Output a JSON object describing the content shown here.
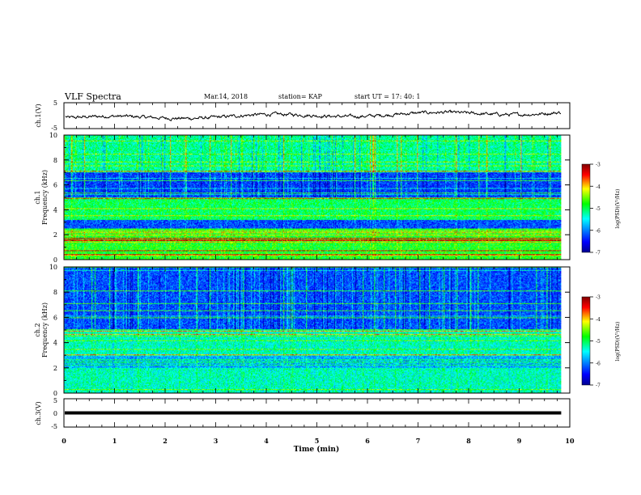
{
  "header": {
    "title": "VLF Spectra",
    "date": "Mar.14, 2018",
    "station": "station= KAP",
    "start": "start  UT =   17: 40: 1"
  },
  "chart_data": [
    {
      "type": "line",
      "name": "ch1-waveform",
      "ylabel": "ch.1(V)",
      "ylim": [
        -5,
        5
      ],
      "yticks": [
        "5",
        "-5"
      ],
      "xlim": [
        0,
        10
      ],
      "x_extent_min": 9.83,
      "description_of_signal": "noisy trace around -1 V to 3 V"
    },
    {
      "type": "heatmap",
      "name": "ch1-spectrogram",
      "ylabel_line1": "ch.1",
      "ylabel_line2": "Frequency (kHz)",
      "ylim": [
        0,
        10
      ],
      "yticks": [
        "0",
        "2",
        "4",
        "6",
        "8",
        "10"
      ],
      "xlim": [
        0,
        10
      ],
      "x_extent_min": 9.83,
      "colorbar": {
        "label": "log(PSD)(V²/Hz)",
        "ticks": [
          "-3",
          "-4",
          "-5",
          "-6",
          "-7"
        ],
        "range": [
          -7,
          -3
        ]
      },
      "colors": [
        "#00008f",
        "#0000ff",
        "#00ffff",
        "#00ff00",
        "#ffff00",
        "#ff0000",
        "#800000"
      ]
    },
    {
      "type": "heatmap",
      "name": "ch2-spectrogram",
      "ylabel_line1": "ch.2",
      "ylabel_line2": "Frequency (kHz)",
      "ylim": [
        0,
        10
      ],
      "yticks": [
        "0",
        "2",
        "4",
        "6",
        "8",
        "10"
      ],
      "xlim": [
        0,
        10
      ],
      "x_extent_min": 9.83,
      "colorbar": {
        "label": "log(PSD)(V²/Hz)",
        "ticks": [
          "-3",
          "-4",
          "-5",
          "-6",
          "-7"
        ],
        "range": [
          -7,
          -3
        ]
      },
      "colors": [
        "#00008f",
        "#0000ff",
        "#00ffff",
        "#00ff00",
        "#ffff00",
        "#ff0000",
        "#800000"
      ]
    },
    {
      "type": "line",
      "name": "ch3-waveform",
      "ylabel": "ch.3(V)",
      "ylim": [
        -5,
        5
      ],
      "yticks": [
        "5",
        "0",
        "-5"
      ],
      "xlim": [
        0,
        10
      ],
      "x_extent_min": 9.83,
      "constant_value": 0,
      "xlabel": "Time  (min)",
      "xticks": [
        "0",
        "1",
        "2",
        "3",
        "4",
        "5",
        "6",
        "7",
        "8",
        "9",
        "10"
      ]
    }
  ]
}
